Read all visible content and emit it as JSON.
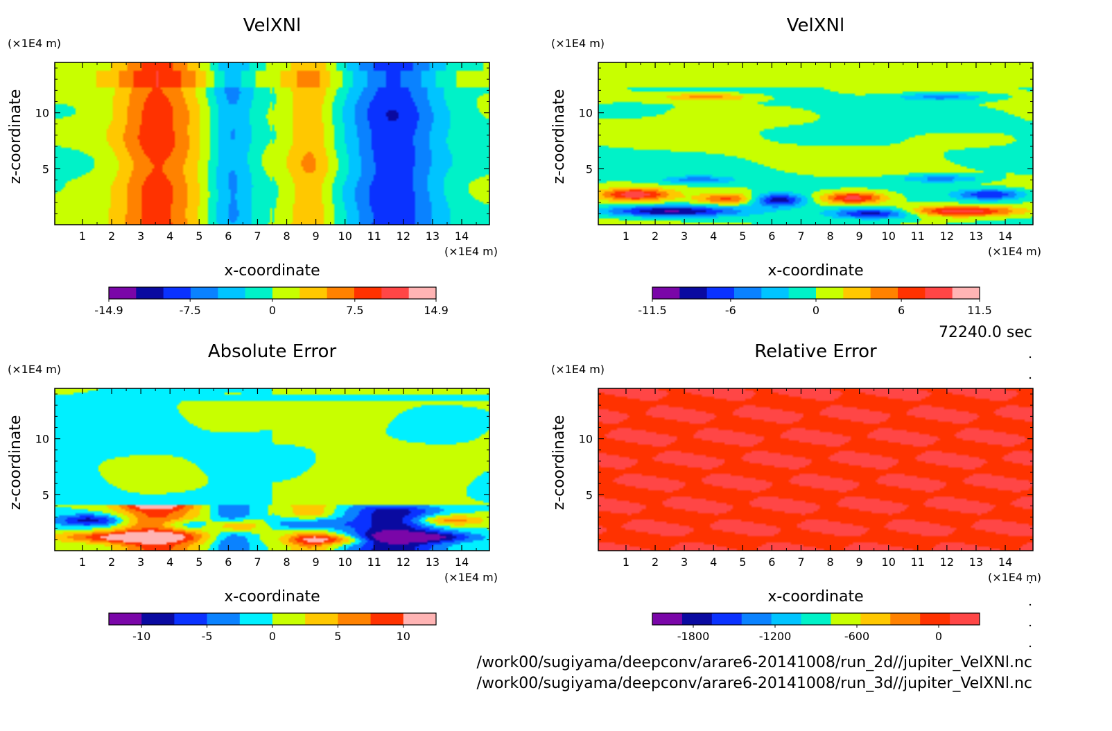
{
  "time_label": "72240.0 sec",
  "files": [
    "/work00/sugiyama/deepconv/arare6-20141008/run_2d//jupiter_VelXNl.nc",
    "/work00/sugiyama/deepconv/arare6-20141008/run_3d//jupiter_VelXNl.nc"
  ],
  "chart_data": [
    {
      "type": "heatmap",
      "title": "VelXNl",
      "xlabel": "x-coordinate",
      "ylabel": "z-coordinate",
      "x_unit": "(×1E4 m)",
      "y_unit": "(×1E4 m)",
      "xlim": [
        0.05,
        14.95
      ],
      "ylim": [
        0,
        14.5
      ],
      "xticks": [
        1,
        2,
        3,
        4,
        5,
        6,
        7,
        8,
        9,
        10,
        11,
        12,
        13,
        14
      ],
      "yticks": [
        5,
        10
      ],
      "field": "velocity",
      "colorbar": {
        "min": -14.9,
        "max": 14.9,
        "ticks": [
          -14.9,
          -7.5,
          0,
          7.5,
          14.9
        ],
        "tick_labels": [
          "-14.9",
          "-7.5",
          "0",
          "7.5",
          "14.9"
        ],
        "colors": [
          "#7a06a8",
          "#0a0aa0",
          "#0a32ff",
          "#0a82ff",
          "#00c4ff",
          "#00f2c8",
          "#c8ff00",
          "#ffc800",
          "#ff8200",
          "#ff3200",
          "#ff4646",
          "#ffb4b4"
        ]
      }
    },
    {
      "type": "heatmap",
      "title": "VelXNl",
      "xlabel": "x-coordinate",
      "ylabel": "z-coordinate",
      "x_unit": "(×1E4 m)",
      "y_unit": "(×1E4 m)",
      "xlim": [
        0.05,
        14.95
      ],
      "ylim": [
        0,
        14.5
      ],
      "xticks": [
        1,
        2,
        3,
        4,
        5,
        6,
        7,
        8,
        9,
        10,
        11,
        12,
        13,
        14
      ],
      "yticks": [
        5,
        10
      ],
      "field": "velocity",
      "colorbar": {
        "min": -11.5,
        "max": 11.5,
        "ticks": [
          -11.5,
          -6,
          0,
          6,
          11.5
        ],
        "tick_labels": [
          "-11.5",
          "-6",
          "0",
          "6",
          "11.5"
        ],
        "colors": [
          "#7a06a8",
          "#0a0aa0",
          "#0a32ff",
          "#0a82ff",
          "#00c4ff",
          "#00f2c8",
          "#c8ff00",
          "#ffc800",
          "#ff8200",
          "#ff3200",
          "#ff4646",
          "#ffb4b4"
        ]
      }
    },
    {
      "type": "heatmap",
      "title": "Absolute Error",
      "xlabel": "x-coordinate",
      "ylabel": "z-coordinate",
      "x_unit": "(×1E4 m)",
      "y_unit": "(×1E4 m)",
      "xlim": [
        0.05,
        14.95
      ],
      "ylim": [
        0,
        14.5
      ],
      "xticks": [
        1,
        2,
        3,
        4,
        5,
        6,
        7,
        8,
        9,
        10,
        11,
        12,
        13,
        14
      ],
      "yticks": [
        5,
        10
      ],
      "field": "abserr",
      "colorbar": {
        "min": -12.5,
        "max": 12.5,
        "ticks": [
          -10,
          -5,
          0,
          5,
          10
        ],
        "tick_labels": [
          "-10",
          "-5",
          "0",
          "5",
          "10"
        ],
        "colors": [
          "#7a06a8",
          "#0a0aa0",
          "#0a32ff",
          "#0a82ff",
          "#00f0ff",
          "#c8ff00",
          "#ffc800",
          "#ff8200",
          "#ff3200",
          "#ffb4b4"
        ]
      }
    },
    {
      "type": "heatmap",
      "title": "Relative Error",
      "xlabel": "x-coordinate",
      "ylabel": "z-coordinate",
      "x_unit": "(×1E4 m)",
      "y_unit": "(×1E4 m)",
      "xlim": [
        0.05,
        14.95
      ],
      "ylim": [
        0,
        14.5
      ],
      "xticks": [
        1,
        2,
        3,
        4,
        5,
        6,
        7,
        8,
        9,
        10,
        11,
        12,
        13,
        14
      ],
      "yticks": [
        5,
        10
      ],
      "field": "relerr",
      "colorbar": {
        "min": -2100,
        "max": 300,
        "ticks": [
          -1800,
          -1200,
          -600,
          0
        ],
        "tick_labels": [
          "-1800",
          "-1200",
          "-600",
          "0"
        ],
        "colors": [
          "#7a06a8",
          "#0a0aa0",
          "#0a32ff",
          "#0a82ff",
          "#00c4ff",
          "#00f2c8",
          "#c8ff00",
          "#ffc800",
          "#ff8200",
          "#ff3200",
          "#ff4646"
        ]
      }
    }
  ]
}
